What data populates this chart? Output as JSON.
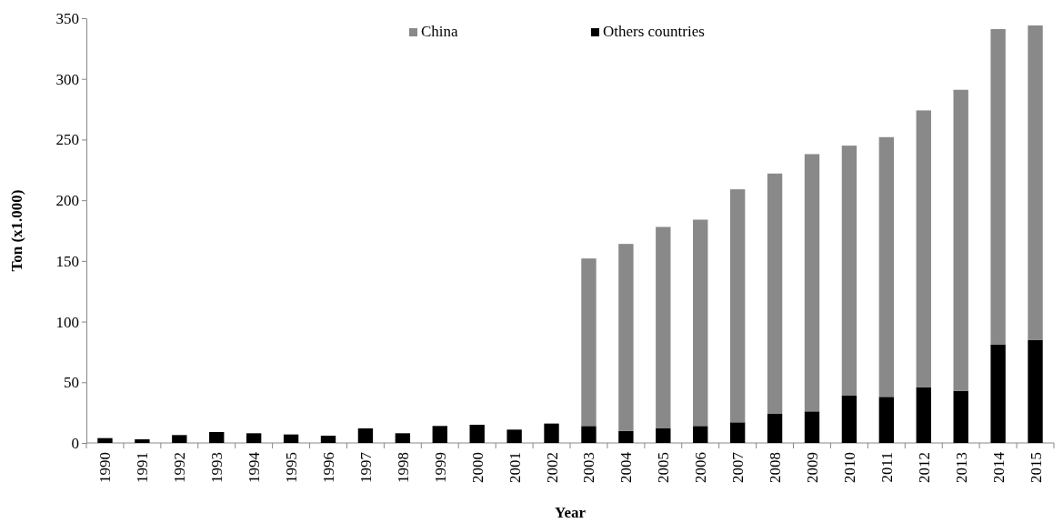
{
  "chart_data": {
    "type": "bar",
    "stacked": true,
    "xlabel": "Year",
    "ylabel": "Ton (x1.000)",
    "categories": [
      "1990",
      "1991",
      "1992",
      "1993",
      "1994",
      "1995",
      "1996",
      "1997",
      "1998",
      "1999",
      "2000",
      "2001",
      "2002",
      "2003",
      "2004",
      "2005",
      "2006",
      "2007",
      "2008",
      "2009",
      "2010",
      "2011",
      "2012",
      "2013",
      "2014",
      "2015"
    ],
    "series": [
      {
        "name": "Others countries",
        "color": "#000000",
        "values": [
          4,
          3,
          6.5,
          9,
          8,
          7,
          6,
          12,
          8,
          14,
          15,
          11,
          16,
          14,
          10,
          12,
          14,
          17,
          24,
          26,
          39,
          38,
          46,
          43,
          81,
          85
        ]
      },
      {
        "name": "China",
        "color": "#898989",
        "values": [
          null,
          null,
          null,
          null,
          null,
          null,
          null,
          null,
          null,
          null,
          null,
          null,
          null,
          138,
          154,
          166,
          170,
          192,
          198,
          212,
          206,
          214,
          228,
          248,
          260,
          259
        ]
      }
    ],
    "ylim": [
      0,
      350
    ],
    "yticks": [
      0,
      50,
      100,
      150,
      200,
      250,
      300,
      350
    ],
    "grid": false,
    "legend": "top"
  }
}
